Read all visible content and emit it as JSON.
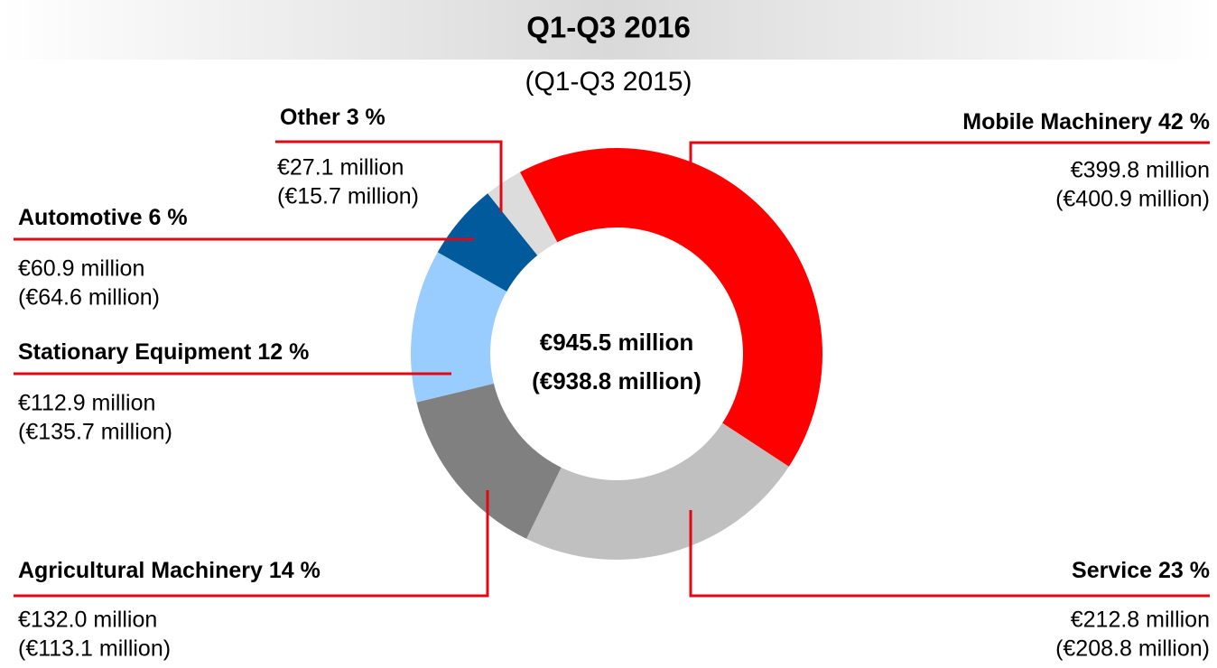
{
  "chart_data": {
    "type": "donut",
    "title": "Q1-Q3 2016",
    "subtitle": "(Q1-Q3 2015)",
    "center_labels": [
      "€945.5 million",
      "(€938.8 million)"
    ],
    "categories": [
      "Mobile Machinery",
      "Service",
      "Agricultural Machinery",
      "Stationary Equipment",
      "Automotive",
      "Other"
    ],
    "values": [
      42,
      23,
      14,
      12,
      6,
      3
    ],
    "value_labels": [
      "42 %",
      "23 %",
      "14 %",
      "12 %",
      "6 %",
      "3 %"
    ],
    "amounts": [
      "€399.8 million",
      "€212.8 million",
      "€132.0 million",
      "€112.9 million",
      "€60.9 million",
      "€27.1 million"
    ],
    "prior_amounts": [
      "(€400.9 million)",
      "(€208.8 million)",
      "(€113.1 million)",
      "(€135.7 million)",
      "(€64.6 million)",
      "(€15.7 million)"
    ],
    "colors": [
      "#ff0000",
      "#c0c0c0",
      "#808080",
      "#99ccff",
      "#005a9c",
      "#dcdcdc"
    ],
    "leader_color": "#e30613"
  }
}
